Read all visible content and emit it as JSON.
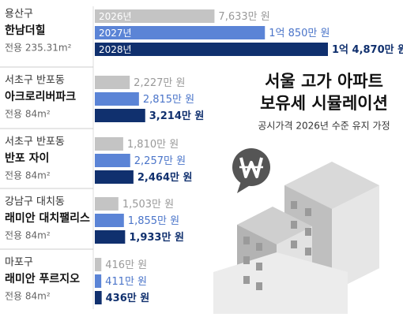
{
  "chart_data": {
    "type": "bar",
    "title": [
      "서울 고가 아파트",
      "보유세 시뮬레이션"
    ],
    "subtitle": "공시가격 2026년 수준 유지 가정",
    "districts": [
      "용산구",
      "서초구 반포동",
      "서초구 반포동",
      "강남구 대치동",
      "마포구"
    ],
    "categories": [
      "한남더힐",
      "아크로리버파크",
      "반포 자이",
      "래미안 대치팰리스",
      "래미안 푸르지오"
    ],
    "areas": [
      "전용 235.31m²",
      "전용 84m²",
      "전용 84m²",
      "전용 84m²",
      "전용 84m²"
    ],
    "series": [
      {
        "name": "2026년",
        "color": "#c4c4c4",
        "values": [
          7633,
          2227,
          1810,
          1503,
          416
        ],
        "value_labels": [
          "7,633만 원",
          "2,227만 원",
          "1,810만 원",
          "1,503만 원",
          "416만 원"
        ]
      },
      {
        "name": "2027년",
        "color": "#5b84d6",
        "values": [
          10850,
          2815,
          2257,
          1855,
          411
        ],
        "value_labels": [
          "1억 850만 원",
          "2,815만 원",
          "2,257만 원",
          "1,855만 원",
          "411만 원"
        ]
      },
      {
        "name": "2028년",
        "color": "#10306e",
        "values": [
          14870,
          3214,
          2464,
          1933,
          436
        ],
        "value_labels": [
          "1억 4,870만 원",
          "3,214만 원",
          "2,464만 원",
          "1,933만 원",
          "436만 원"
        ]
      }
    ]
  }
}
